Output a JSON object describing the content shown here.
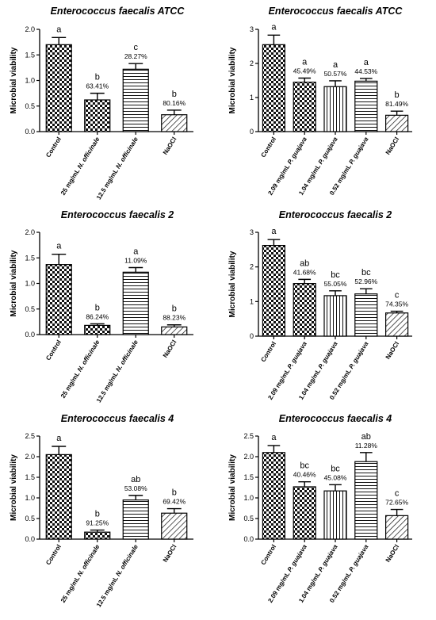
{
  "chart_data": [
    {
      "type": "bar",
      "title": "Enterococcus faecalis ATCC",
      "ylabel": "Microbial viability",
      "ylim": [
        0,
        2.0
      ],
      "yticks": [
        "0.0",
        "0.5",
        "1.0",
        "1.5",
        "2.0"
      ],
      "categories": [
        {
          "text": "Control",
          "italic": ""
        },
        {
          "text": "25 mg/mL ",
          "italic": "N. officinale"
        },
        {
          "text": "12.5 mg/mL ",
          "italic": "N. officinale"
        },
        {
          "text": "NaOCl",
          "italic": ""
        }
      ],
      "values": [
        1.7,
        0.62,
        1.22,
        0.33
      ],
      "errors": [
        0.14,
        0.13,
        0.11,
        0.09
      ],
      "patterns": [
        "check",
        "check",
        "hline",
        "diag"
      ],
      "significance": [
        "a",
        "b",
        "c",
        "b"
      ],
      "inhibition": [
        "",
        "63.41%",
        "28.27%",
        "80.16%"
      ]
    },
    {
      "type": "bar",
      "title": "Enterococcus faecalis ATCC",
      "ylabel": "Microbial viability",
      "ylim": [
        0,
        3
      ],
      "yticks": [
        "0",
        "1",
        "2",
        "3"
      ],
      "categories": [
        {
          "text": "Control",
          "italic": ""
        },
        {
          "text": "2.09 mg/mL ",
          "italic": "P. guajava"
        },
        {
          "text": "1.04 mg/mL ",
          "italic": "P. guajava"
        },
        {
          "text": "0.52 mg/mL ",
          "italic": "P. guajava"
        },
        {
          "text": "NaOCl",
          "italic": ""
        }
      ],
      "values": [
        2.55,
        1.45,
        1.32,
        1.48,
        0.48
      ],
      "errors": [
        0.28,
        0.12,
        0.17,
        0.08,
        0.12
      ],
      "patterns": [
        "check",
        "check",
        "vline",
        "hline",
        "diag"
      ],
      "significance": [
        "a",
        "a",
        "a",
        "a",
        "b"
      ],
      "inhibition": [
        "",
        "45.49%",
        "50.57%",
        "44.53%",
        "81.49%"
      ]
    },
    {
      "type": "bar",
      "title": "Enterococcus faecalis 2",
      "ylabel": "Microbial viability",
      "ylim": [
        0,
        2.0
      ],
      "yticks": [
        "0.0",
        "0.5",
        "1.0",
        "1.5",
        "2.0"
      ],
      "categories": [
        {
          "text": "Control",
          "italic": ""
        },
        {
          "text": "25 mg/mL ",
          "italic": "N. officinale"
        },
        {
          "text": "12.5 mg/mL ",
          "italic": "N. officinale"
        },
        {
          "text": "NaOCl",
          "italic": ""
        }
      ],
      "values": [
        1.37,
        0.18,
        1.22,
        0.15
      ],
      "errors": [
        0.2,
        0.03,
        0.09,
        0.04
      ],
      "patterns": [
        "check",
        "check",
        "hline",
        "diag"
      ],
      "significance": [
        "a",
        "b",
        "a",
        "b"
      ],
      "inhibition": [
        "",
        "86.24%",
        "11.09%",
        "88.23%"
      ]
    },
    {
      "type": "bar",
      "title": "Enterococcus faecalis 2",
      "ylabel": "Microbial viability",
      "ylim": [
        0,
        3
      ],
      "yticks": [
        "0",
        "1",
        "2",
        "3"
      ],
      "categories": [
        {
          "text": "Control",
          "italic": ""
        },
        {
          "text": "2.09 mg/mL ",
          "italic": "P. guajava"
        },
        {
          "text": "1.04 mg/mL ",
          "italic": "P. guajava"
        },
        {
          "text": "0.52 mg/mL ",
          "italic": "P. guajava"
        },
        {
          "text": "NaOCl",
          "italic": ""
        }
      ],
      "values": [
        2.62,
        1.52,
        1.17,
        1.22,
        0.67
      ],
      "errors": [
        0.17,
        0.12,
        0.14,
        0.15,
        0.05
      ],
      "patterns": [
        "check",
        "check",
        "vline",
        "hline",
        "diag"
      ],
      "significance": [
        "a",
        "ab",
        "bc",
        "bc",
        "c"
      ],
      "inhibition": [
        "",
        "41.68%",
        "55.05%",
        "52.96%",
        "74.35%"
      ]
    },
    {
      "type": "bar",
      "title": "Enterococcus faecalis 4",
      "ylabel": "Microbial viability",
      "ylim": [
        0,
        2.5
      ],
      "yticks": [
        "0.0",
        "0.5",
        "1.0",
        "1.5",
        "2.0",
        "2.5"
      ],
      "categories": [
        {
          "text": "Control",
          "italic": ""
        },
        {
          "text": "25 mg/mL ",
          "italic": "N. officinale"
        },
        {
          "text": "12.5 mg/mL ",
          "italic": "N. officinale"
        },
        {
          "text": "NaOCl",
          "italic": ""
        }
      ],
      "values": [
        2.05,
        0.17,
        0.95,
        0.63
      ],
      "errors": [
        0.2,
        0.05,
        0.11,
        0.11
      ],
      "patterns": [
        "check",
        "check",
        "hline",
        "diag"
      ],
      "significance": [
        "a",
        "b",
        "ab",
        "b"
      ],
      "inhibition": [
        "",
        "91.25%",
        "53.08%",
        "69.42%"
      ]
    },
    {
      "type": "bar",
      "title": "Enterococcus faecalis 4",
      "ylabel": "Microbial viability",
      "ylim": [
        0,
        2.5
      ],
      "yticks": [
        "0.0",
        "0.5",
        "1.0",
        "1.5",
        "2.0",
        "2.5"
      ],
      "categories": [
        {
          "text": "Control",
          "italic": ""
        },
        {
          "text": "2.09 mg/mL ",
          "italic": "P. guajava"
        },
        {
          "text": "1.04 mg/mL ",
          "italic": "P. guajava"
        },
        {
          "text": "0.52 mg/mL ",
          "italic": "P. guajava"
        },
        {
          "text": "NaOCl",
          "italic": ""
        }
      ],
      "values": [
        2.1,
        1.27,
        1.17,
        1.88,
        0.57
      ],
      "errors": [
        0.17,
        0.12,
        0.15,
        0.22,
        0.15
      ],
      "patterns": [
        "check",
        "check",
        "vline",
        "hline",
        "diag"
      ],
      "significance": [
        "a",
        "bc",
        "bc",
        "ab",
        "c"
      ],
      "inhibition": [
        "",
        "40.46%",
        "45.08%",
        "11.28%",
        "72.65%"
      ]
    }
  ]
}
